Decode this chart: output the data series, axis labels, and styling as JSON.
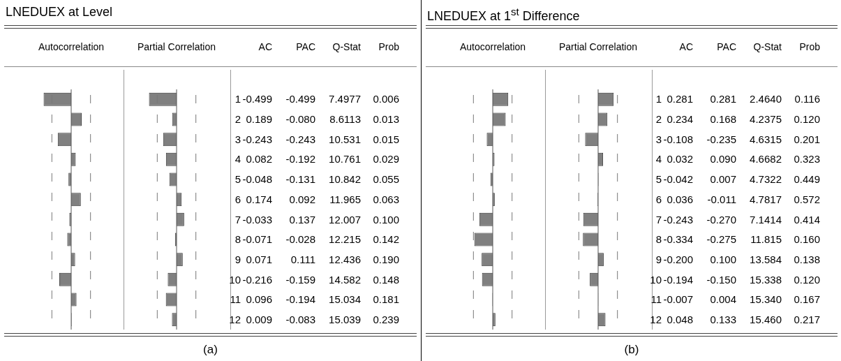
{
  "chart_data": [
    {
      "type": "bar",
      "orientation": "horizontal",
      "title": "LNEDUEX at Level",
      "xlabel": "Autocorrelation",
      "categories": [
        "1",
        "2",
        "3",
        "4",
        "5",
        "6",
        "7",
        "8",
        "9",
        "10",
        "11",
        "12"
      ],
      "tick_labels": false,
      "line_style": "dashed",
      "color": "#808080",
      "values": [
        -0.499,
        0.189,
        -0.243,
        0.082,
        -0.048,
        0.174,
        -0.033,
        -0.071,
        0.071,
        -0.216,
        0.096,
        0.009
      ],
      "value_labels": [
        "-0.499",
        "0.189",
        "-0.243",
        "0.082",
        "-0.048",
        "0.174",
        "-0.033",
        "-0.071",
        "0.071",
        "-0.216",
        "0.096",
        "0.009"
      ],
      "ref_lines": [
        {
          "axis": "x",
          "value": -0.35
        },
        {
          "axis": "x",
          "value": 0.35
        }
      ]
    },
    {
      "type": "bar",
      "orientation": "horizontal",
      "xlabel": "Partial Correlation",
      "categories": [
        "1",
        "2",
        "3",
        "4",
        "5",
        "6",
        "7",
        "8",
        "9",
        "10",
        "11",
        "12"
      ],
      "tick_labels": "y",
      "line_style": "dashed",
      "color": "#808080",
      "values": [
        -0.499,
        -0.08,
        -0.243,
        -0.192,
        -0.131,
        0.092,
        0.137,
        -0.028,
        0.111,
        -0.159,
        -0.194,
        -0.083
      ],
      "value_labels": [
        "-0.499",
        "-0.080",
        "-0.243",
        "-0.192",
        "-0.131",
        "0.092",
        "0.137",
        "-0.028",
        "0.111",
        "-0.159",
        "-0.194",
        "-0.083"
      ],
      "ref_lines": [
        {
          "axis": "x",
          "value": -0.35
        },
        {
          "axis": "x",
          "value": 0.35
        }
      ],
      "annotations": [
        "AC",
        "PAC",
        "Q-Stat",
        "Prob",
        "7.4977",
        "8.6113",
        "10.531",
        "10.761",
        "10.842",
        "11.965",
        "12.007",
        "12.215",
        "12.436",
        "14.582",
        "15.034",
        "15.039",
        "0.006",
        "0.013",
        "0.015",
        "0.029",
        "0.055",
        "0.063",
        "0.100",
        "0.142",
        "0.190",
        "0.148",
        "0.181",
        "0.239",
        "(a)"
      ]
    },
    {
      "type": "bar",
      "orientation": "horizontal",
      "title": "LNEDUEX at 1$^{st}$ Difference",
      "xlabel": "Autocorrelation",
      "categories": [
        "1",
        "2",
        "3",
        "4",
        "5",
        "6",
        "7",
        "8",
        "9",
        "10",
        "11",
        "12"
      ],
      "tick_labels": false,
      "line_style": "dashed",
      "color": "#808080",
      "values": [
        0.281,
        0.234,
        -0.108,
        0.032,
        -0.042,
        0.036,
        -0.243,
        -0.334,
        -0.2,
        -0.194,
        -0.007,
        0.048
      ],
      "value_labels": [
        "0.281",
        "0.234",
        "-0.108",
        "0.032",
        "-0.042",
        "0.036",
        "-0.243",
        "-0.334",
        "-0.200",
        "-0.194",
        "-0.007",
        "0.048"
      ],
      "ref_lines": [
        {
          "axis": "x",
          "value": -0.35
        },
        {
          "axis": "x",
          "value": 0.35
        }
      ]
    },
    {
      "type": "bar",
      "orientation": "horizontal",
      "xlabel": "Partial Correlation",
      "categories": [
        "1",
        "2",
        "3",
        "4",
        "5",
        "6",
        "7",
        "8",
        "9",
        "10",
        "11",
        "12"
      ],
      "tick_labels": "y",
      "line_style": "dashed",
      "color": "#808080",
      "values": [
        0.281,
        0.168,
        -0.235,
        0.09,
        0.007,
        -0.011,
        -0.27,
        -0.275,
        0.1,
        -0.15,
        0.004,
        0.133
      ],
      "value_labels": [
        "0.281",
        "0.168",
        "-0.235",
        "0.090",
        "0.007",
        "-0.011",
        "-0.270",
        "-0.275",
        "0.100",
        "-0.150",
        "0.004",
        "0.133"
      ],
      "ref_lines": [
        {
          "axis": "x",
          "value": -0.35
        },
        {
          "axis": "x",
          "value": 0.35
        }
      ],
      "annotations": [
        "AC",
        "PAC",
        "Q-Stat",
        "Prob",
        "2.4640",
        "4.2375",
        "4.6315",
        "4.6682",
        "4.7322",
        "4.7817",
        "7.1414",
        "11.815",
        "13.584",
        "15.338",
        "15.340",
        "15.460",
        "0.116",
        "0.120",
        "0.201",
        "0.323",
        "0.449",
        "0.572",
        "0.414",
        "0.160",
        "0.138",
        "0.120",
        "0.167",
        "0.217",
        "(b)"
      ]
    }
  ]
}
